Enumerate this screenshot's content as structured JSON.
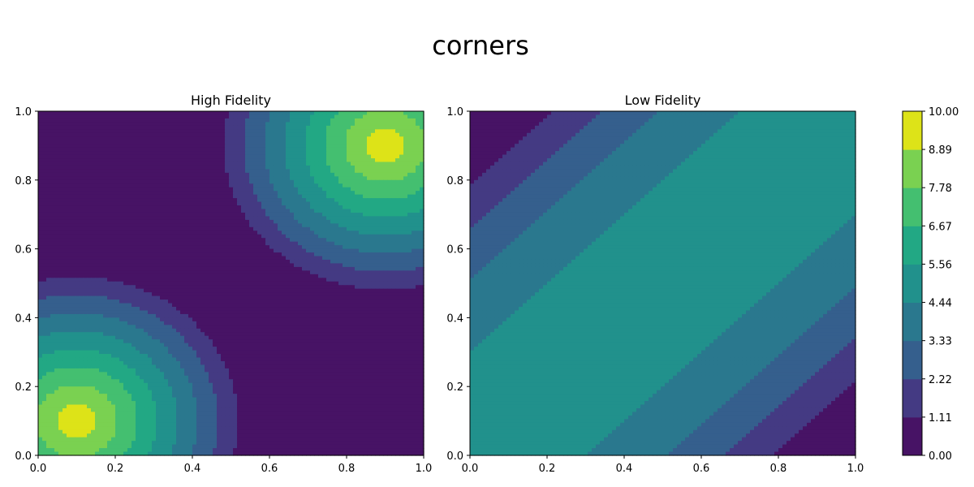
{
  "chart_data": {
    "type": "contourf",
    "suptitle": "corners",
    "colorbar": {
      "levels": [
        0.0,
        1.11,
        2.22,
        3.33,
        4.44,
        5.56,
        6.67,
        7.78,
        8.89,
        10.0
      ],
      "tick_labels": [
        "0.00",
        "1.11",
        "2.22",
        "3.33",
        "4.44",
        "5.56",
        "6.67",
        "7.78",
        "8.89",
        "10.00"
      ],
      "colors": [
        "#471365",
        "#443a83",
        "#355f8d",
        "#2a788e",
        "#21918c",
        "#22a884",
        "#44bf70",
        "#7ad151",
        "#dde318"
      ]
    },
    "panels": [
      {
        "title": "High Fidelity",
        "xlim": [
          0,
          1
        ],
        "ylim": [
          0,
          1
        ],
        "xticks": [
          "0.0",
          "0.2",
          "0.4",
          "0.6",
          "0.8",
          "1.0"
        ],
        "yticks": [
          "0.0",
          "0.2",
          "0.4",
          "0.6",
          "0.8",
          "1.0"
        ],
        "field": {
          "kind": "two_peaks",
          "peaks": [
            {
              "x": 0.1,
              "y": 0.1,
              "amplitude": 10.0,
              "radius": 0.47
            },
            {
              "x": 0.9,
              "y": 0.9,
              "amplitude": 10.0,
              "radius": 0.47
            }
          ]
        }
      },
      {
        "title": "Low Fidelity",
        "xlim": [
          0,
          1
        ],
        "ylim": [
          0,
          1
        ],
        "xticks": [
          "0.0",
          "0.2",
          "0.4",
          "0.6",
          "0.8",
          "1.0"
        ],
        "yticks": [
          "0.0",
          "0.2",
          "0.4",
          "0.6",
          "0.8",
          "1.0"
        ],
        "field": {
          "kind": "saddle",
          "center": 5.0,
          "scale": 8.2
        }
      }
    ]
  }
}
